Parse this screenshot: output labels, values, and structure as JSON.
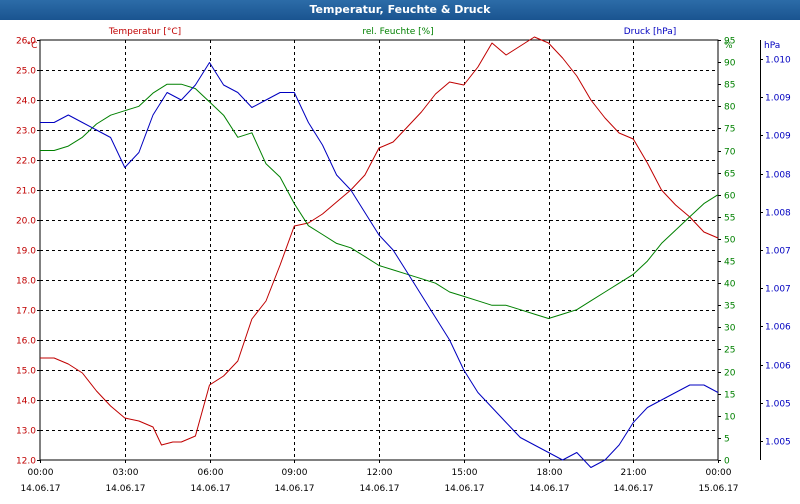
{
  "window": {
    "title": "Temperatur, Feuchte & Druck"
  },
  "colors": {
    "temperature": "#c00000",
    "humidity": "#008000",
    "pressure": "#0000c0",
    "grid": "#000000",
    "titlebar": "#1f5f9f"
  },
  "chart_data": {
    "type": "line",
    "title": "Temperatur, Feuchte & Druck",
    "grid": true,
    "x_ticks": [
      {
        "time": "00:00",
        "date": "14.06.17"
      },
      {
        "time": "03:00",
        "date": "14.06.17"
      },
      {
        "time": "06:00",
        "date": "14.06.17"
      },
      {
        "time": "09:00",
        "date": "14.06.17"
      },
      {
        "time": "12:00",
        "date": "14.06.17"
      },
      {
        "time": "15:00",
        "date": "14.06.17"
      },
      {
        "time": "18:00",
        "date": "14.06.17"
      },
      {
        "time": "21:00",
        "date": "14.06.17"
      },
      {
        "time": "00:00",
        "date": "15.06.17"
      }
    ],
    "x_range_hours": [
      0,
      24
    ],
    "axes": {
      "left": {
        "unit": "°C",
        "min": 12.0,
        "max": 26.0,
        "ticks": [
          "12.0",
          "13.0",
          "14.0",
          "15.0",
          "16.0",
          "17.0",
          "18.0",
          "19.0",
          "20.0",
          "21.0",
          "22.0",
          "23.0",
          "24.0",
          "25.0",
          "26.0"
        ]
      },
      "right1": {
        "unit": "%",
        "min": 0,
        "max": 95,
        "ticks": [
          "0",
          "5",
          "10",
          "15",
          "20",
          "25",
          "30",
          "35",
          "40",
          "45",
          "50",
          "55",
          "60",
          "65",
          "70",
          "75",
          "80",
          "85",
          "90",
          "95"
        ]
      },
      "right2": {
        "unit": "hPa",
        "min": 1004.7,
        "max": 1010.3,
        "ticks": [
          "1.005",
          "1.005",
          "1.006",
          "1.006",
          "1.007",
          "1.007",
          "1.008",
          "1.008",
          "1.009",
          "1.009",
          "1.010"
        ]
      }
    },
    "series": [
      {
        "name": "Temperatur [°C]",
        "axis": "left",
        "color": "#c00000",
        "points": [
          [
            0,
            15.4
          ],
          [
            0.5,
            15.4
          ],
          [
            1,
            15.2
          ],
          [
            1.5,
            14.9
          ],
          [
            2,
            14.3
          ],
          [
            2.5,
            13.8
          ],
          [
            3,
            13.4
          ],
          [
            3.5,
            13.3
          ],
          [
            4,
            13.1
          ],
          [
            4.3,
            12.5
          ],
          [
            4.7,
            12.6
          ],
          [
            5,
            12.6
          ],
          [
            5.5,
            12.8
          ],
          [
            6,
            14.5
          ],
          [
            6.5,
            14.8
          ],
          [
            7,
            15.3
          ],
          [
            7.5,
            16.7
          ],
          [
            8,
            17.3
          ],
          [
            8.5,
            18.5
          ],
          [
            9,
            19.8
          ],
          [
            9.5,
            19.9
          ],
          [
            10,
            20.2
          ],
          [
            10.5,
            20.6
          ],
          [
            11,
            21.0
          ],
          [
            11.5,
            21.5
          ],
          [
            12,
            22.4
          ],
          [
            12.5,
            22.6
          ],
          [
            13,
            23.1
          ],
          [
            13.5,
            23.6
          ],
          [
            14,
            24.2
          ],
          [
            14.5,
            24.6
          ],
          [
            15,
            24.5
          ],
          [
            15.5,
            25.1
          ],
          [
            16,
            25.9
          ],
          [
            16.5,
            25.5
          ],
          [
            17,
            25.8
          ],
          [
            17.5,
            26.1
          ],
          [
            18,
            25.9
          ],
          [
            18.5,
            25.4
          ],
          [
            19,
            24.8
          ],
          [
            19.5,
            24.0
          ],
          [
            20,
            23.4
          ],
          [
            20.5,
            22.9
          ],
          [
            21,
            22.7
          ],
          [
            21.5,
            21.9
          ],
          [
            22,
            21.0
          ],
          [
            22.5,
            20.5
          ],
          [
            23,
            20.1
          ],
          [
            23.5,
            19.6
          ],
          [
            24,
            19.4
          ]
        ]
      },
      {
        "name": "rel. Feuchte [%]",
        "axis": "right1",
        "color": "#008000",
        "points": [
          [
            0,
            70
          ],
          [
            0.5,
            70
          ],
          [
            1,
            71
          ],
          [
            1.5,
            73
          ],
          [
            2,
            76
          ],
          [
            2.5,
            78
          ],
          [
            3,
            79
          ],
          [
            3.5,
            80
          ],
          [
            4,
            83
          ],
          [
            4.5,
            85
          ],
          [
            5,
            85
          ],
          [
            5.5,
            84
          ],
          [
            6,
            81
          ],
          [
            6.5,
            78
          ],
          [
            7,
            73
          ],
          [
            7.5,
            74
          ],
          [
            8,
            67
          ],
          [
            8.5,
            64
          ],
          [
            9,
            58
          ],
          [
            9.5,
            53
          ],
          [
            10,
            51
          ],
          [
            10.5,
            49
          ],
          [
            11,
            48
          ],
          [
            11.5,
            46
          ],
          [
            12,
            44
          ],
          [
            12.5,
            43
          ],
          [
            13,
            42
          ],
          [
            13.5,
            41
          ],
          [
            14,
            40
          ],
          [
            14.5,
            38
          ],
          [
            15,
            37
          ],
          [
            15.5,
            36
          ],
          [
            16,
            35
          ],
          [
            16.5,
            35
          ],
          [
            17,
            34
          ],
          [
            17.5,
            33
          ],
          [
            18,
            32
          ],
          [
            18.5,
            33
          ],
          [
            19,
            34
          ],
          [
            19.5,
            36
          ],
          [
            20,
            38
          ],
          [
            20.5,
            40
          ],
          [
            21,
            42
          ],
          [
            21.5,
            45
          ],
          [
            22,
            49
          ],
          [
            22.5,
            52
          ],
          [
            23,
            55
          ],
          [
            23.5,
            58
          ],
          [
            24,
            60
          ]
        ]
      },
      {
        "name": "Druck [hPa]",
        "axis": "right2",
        "color": "#0000c0",
        "points": [
          [
            0,
            1009.2
          ],
          [
            0.5,
            1009.2
          ],
          [
            1,
            1009.3
          ],
          [
            1.5,
            1009.2
          ],
          [
            2,
            1009.1
          ],
          [
            2.5,
            1009.0
          ],
          [
            3,
            1008.6
          ],
          [
            3.5,
            1008.8
          ],
          [
            4,
            1009.3
          ],
          [
            4.5,
            1009.6
          ],
          [
            5,
            1009.5
          ],
          [
            5.5,
            1009.7
          ],
          [
            6,
            1010.0
          ],
          [
            6.5,
            1009.7
          ],
          [
            7,
            1009.6
          ],
          [
            7.5,
            1009.4
          ],
          [
            8,
            1009.5
          ],
          [
            8.5,
            1009.6
          ],
          [
            9,
            1009.6
          ],
          [
            9.5,
            1009.2
          ],
          [
            10,
            1008.9
          ],
          [
            10.5,
            1008.5
          ],
          [
            11,
            1008.3
          ],
          [
            11.5,
            1008.0
          ],
          [
            12,
            1007.7
          ],
          [
            12.5,
            1007.5
          ],
          [
            13,
            1007.2
          ],
          [
            13.5,
            1006.9
          ],
          [
            14,
            1006.6
          ],
          [
            14.5,
            1006.3
          ],
          [
            15,
            1005.9
          ],
          [
            15.5,
            1005.6
          ],
          [
            16,
            1005.4
          ],
          [
            16.5,
            1005.2
          ],
          [
            17,
            1005.0
          ],
          [
            17.5,
            1004.9
          ],
          [
            18,
            1004.8
          ],
          [
            18.5,
            1004.7
          ],
          [
            19,
            1004.8
          ],
          [
            19.5,
            1004.6
          ],
          [
            20,
            1004.7
          ],
          [
            20.5,
            1004.9
          ],
          [
            21,
            1005.2
          ],
          [
            21.5,
            1005.4
          ],
          [
            22,
            1005.5
          ],
          [
            22.5,
            1005.6
          ],
          [
            23,
            1005.7
          ],
          [
            23.5,
            1005.7
          ],
          [
            24,
            1005.6
          ]
        ]
      }
    ]
  }
}
